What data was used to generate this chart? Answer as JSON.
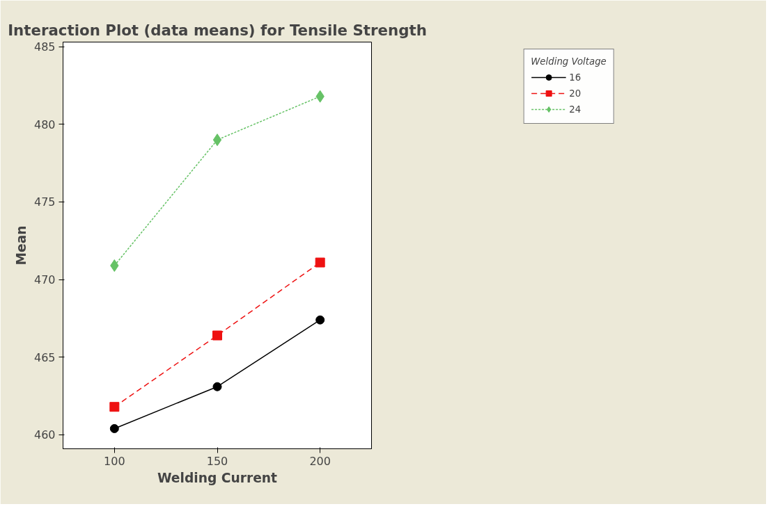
{
  "chart_data": {
    "type": "line",
    "title": "Interaction Plot (data means) for Tensile Strength",
    "xlabel": "Welding Current",
    "ylabel": "Mean",
    "legend_title": "Welding Voltage",
    "x": [
      100,
      150,
      200
    ],
    "series": [
      {
        "name": "16",
        "color": "#000000",
        "values": [
          460.4,
          463.1,
          467.4
        ],
        "marker": "circle",
        "line_style": "solid"
      },
      {
        "name": "20",
        "color": "#ee1111",
        "values": [
          461.8,
          466.4,
          471.1
        ],
        "marker": "square",
        "line_style": "dashed"
      },
      {
        "name": "24",
        "color": "#66c266",
        "values": [
          470.9,
          479.0,
          481.8
        ],
        "marker": "diamond",
        "line_style": "dotted"
      }
    ],
    "xlim": [
      75,
      225
    ],
    "xticks": [
      100,
      150,
      200
    ],
    "ylim": [
      459.1,
      485.3
    ],
    "yticks": [
      460,
      465,
      470,
      475,
      480,
      485
    ],
    "grid": false,
    "legend": "top right"
  }
}
